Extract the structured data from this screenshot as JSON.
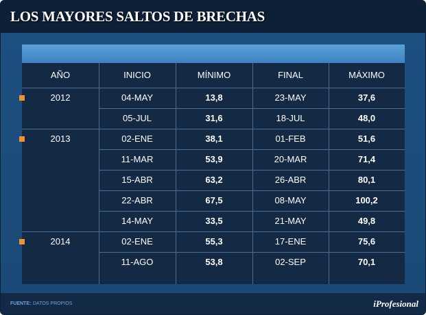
{
  "title": "LOS MAYORES SALTOS DE BRECHAS",
  "footer": {
    "source_label": "FUENTE:",
    "source_value": "DATOS PROPIOS",
    "logo": "iProfesional"
  },
  "colors": {
    "marker": "#f0922d",
    "header_band": "#4a90cc",
    "table_bg": "#132944",
    "background": "#1f5588"
  },
  "chart_data": {
    "type": "table",
    "columns": [
      "AÑO",
      "INICIO",
      "MÍNIMO",
      "FINAL",
      "MÁXIMO"
    ],
    "groups": [
      {
        "year": "2012",
        "rows": [
          {
            "inicio": "04-MAY",
            "minimo": "13,8",
            "final": "23-MAY",
            "maximo": "37,6"
          },
          {
            "inicio": "05-JUL",
            "minimo": "31,6",
            "final": "18-JUL",
            "maximo": "48,0"
          }
        ]
      },
      {
        "year": "2013",
        "rows": [
          {
            "inicio": "02-ENE",
            "minimo": "38,1",
            "final": "01-FEB",
            "maximo": "51,6"
          },
          {
            "inicio": "11-MAR",
            "minimo": "53,9",
            "final": "20-MAR",
            "maximo": "71,4"
          },
          {
            "inicio": "15-ABR",
            "minimo": "63,2",
            "final": "26-ABR",
            "maximo": "80,1"
          },
          {
            "inicio": "22-ABR",
            "minimo": "67,5",
            "final": "08-MAY",
            "maximo": "100,2"
          },
          {
            "inicio": "14-MAY",
            "minimo": "33,5",
            "final": "21-MAY",
            "maximo": "49,8"
          }
        ]
      },
      {
        "year": "2014",
        "rows": [
          {
            "inicio": "02-ENE",
            "minimo": "55,3",
            "final": "17-ENE",
            "maximo": "75,6"
          },
          {
            "inicio": "11-AGO",
            "minimo": "53,8",
            "final": "02-SEP",
            "maximo": "70,1"
          }
        ]
      }
    ]
  }
}
